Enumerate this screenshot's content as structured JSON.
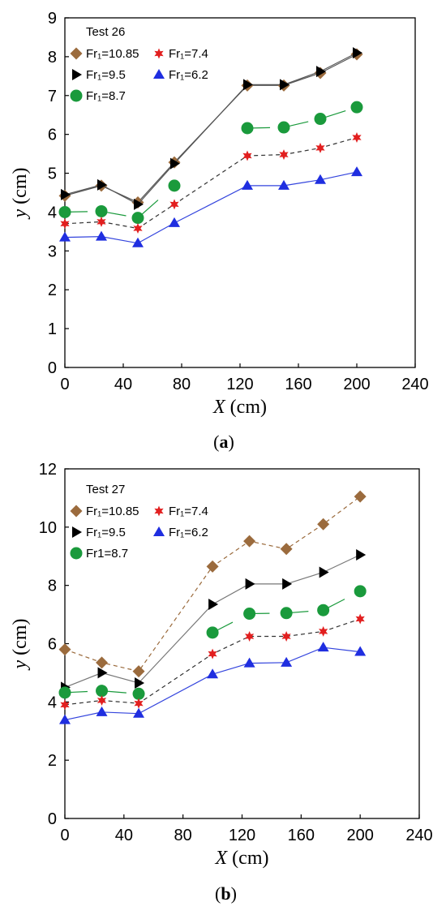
{
  "chart_data": [
    {
      "type": "line",
      "panel_label": "a",
      "xlabel": "X (cm)",
      "ylabel": "y (cm)",
      "xlim": [
        0,
        240
      ],
      "ylim": [
        0,
        9
      ],
      "xticks": [
        0,
        40,
        80,
        120,
        160,
        200,
        240
      ],
      "yticks": [
        0,
        1,
        2,
        3,
        4,
        5,
        6,
        7,
        8,
        9
      ],
      "grid": false,
      "legend_position": "top-left",
      "legend_title": "Test 26",
      "series": [
        {
          "name": "Fr1=10.85",
          "marker": "diamond",
          "color": "#9b6b3d",
          "line_color": "#555555",
          "dash": "",
          "segments": [
            [
              0,
              1,
              2,
              3,
              4,
              5,
              6,
              7
            ]
          ],
          "x": [
            0,
            25,
            50,
            75,
            125,
            150,
            175,
            200
          ],
          "values": [
            4.42,
            4.68,
            4.25,
            5.28,
            7.26,
            7.26,
            7.58,
            8.06
          ]
        },
        {
          "name": "Fr1=9.5",
          "marker": "triangle-right",
          "color": "#000000",
          "line_color": "#555555",
          "dash": "",
          "segments": [
            [
              0,
              1,
              2,
              3,
              4,
              5,
              6,
              7
            ]
          ],
          "x": [
            0,
            25,
            50,
            75,
            125,
            150,
            175,
            200
          ],
          "values": [
            4.45,
            4.7,
            4.2,
            5.25,
            7.28,
            7.28,
            7.62,
            8.1
          ]
        },
        {
          "name": "Fr1=8.7",
          "marker": "circle",
          "color": "#1a9a3c",
          "line_color": "#1a9a3c",
          "dash": "28 20",
          "segments": [
            [
              0,
              1,
              2,
              3
            ],
            [
              4,
              5,
              6,
              7
            ]
          ],
          "x": [
            0,
            25,
            50,
            75,
            125,
            150,
            175,
            200
          ],
          "values": [
            4.0,
            4.02,
            3.85,
            4.68,
            6.16,
            6.18,
            6.4,
            6.7
          ]
        },
        {
          "name": "Fr1=7.4",
          "marker": "star",
          "color": "#e21f1f",
          "line_color": "#333333",
          "dash": "5 4",
          "segments": [
            [
              0,
              1,
              2,
              3,
              4,
              5,
              6,
              7
            ]
          ],
          "x": [
            0,
            25,
            50,
            75,
            125,
            150,
            175,
            200
          ],
          "values": [
            3.7,
            3.75,
            3.58,
            4.2,
            5.45,
            5.48,
            5.65,
            5.92
          ]
        },
        {
          "name": "Fr1=6.2",
          "marker": "triangle-up",
          "color": "#1f2ee0",
          "line_color": "#3344dd",
          "dash": "",
          "segments": [
            [
              0,
              1,
              2,
              3,
              4,
              5,
              6,
              7
            ]
          ],
          "x": [
            0,
            25,
            50,
            75,
            125,
            150,
            175,
            200
          ],
          "values": [
            3.35,
            3.37,
            3.2,
            3.72,
            4.68,
            4.68,
            4.83,
            5.03
          ]
        }
      ]
    },
    {
      "type": "line",
      "panel_label": "b",
      "xlabel": "X (cm)",
      "ylabel": "y (cm)",
      "xlim": [
        0,
        240
      ],
      "ylim": [
        0,
        12
      ],
      "xticks": [
        0,
        40,
        80,
        120,
        160,
        200,
        240
      ],
      "yticks": [
        0,
        2,
        4,
        6,
        8,
        10,
        12
      ],
      "grid": false,
      "legend_position": "top-left",
      "legend_title": "Test 27",
      "series": [
        {
          "name": "Fr1=10.85",
          "marker": "diamond",
          "color": "#9b6b3d",
          "line_color": "#9b6b3d",
          "dash": "5 4",
          "segments": [
            [
              0,
              1,
              2,
              3,
              4,
              5,
              6,
              7
            ]
          ],
          "x": [
            0,
            25,
            50,
            100,
            125,
            150,
            175,
            200
          ],
          "values": [
            5.8,
            5.35,
            5.05,
            8.65,
            9.52,
            9.25,
            10.1,
            11.05
          ]
        },
        {
          "name": "Fr1=9.5",
          "marker": "triangle-right",
          "color": "#000000",
          "line_color": "#777777",
          "dash": "",
          "segments": [
            [
              0,
              1,
              2,
              3,
              4,
              5,
              6,
              7
            ]
          ],
          "x": [
            0,
            25,
            50,
            100,
            125,
            150,
            175,
            200
          ],
          "values": [
            4.5,
            5.0,
            4.65,
            7.35,
            8.05,
            8.05,
            8.45,
            9.05
          ]
        },
        {
          "name": "Fr1=8.7",
          "marker": "circle",
          "color": "#1a9a3c",
          "line_color": "#1a9a3c",
          "dash": "28 20",
          "segments": [
            [
              0,
              1,
              2
            ],
            [
              3,
              4,
              5,
              6,
              7
            ]
          ],
          "x": [
            0,
            25,
            50,
            100,
            125,
            150,
            175,
            200
          ],
          "values": [
            4.32,
            4.38,
            4.28,
            6.38,
            7.03,
            7.05,
            7.15,
            7.8
          ]
        },
        {
          "name": "Fr1=7.4",
          "marker": "star",
          "color": "#e21f1f",
          "line_color": "#333333",
          "dash": "5 4",
          "segments": [
            [
              0,
              1,
              2,
              3,
              4,
              5,
              6,
              7
            ]
          ],
          "x": [
            0,
            25,
            50,
            100,
            125,
            150,
            175,
            200
          ],
          "values": [
            3.9,
            4.05,
            3.95,
            5.65,
            6.25,
            6.25,
            6.42,
            6.85
          ]
        },
        {
          "name": "Fr1=6.2",
          "marker": "triangle-up",
          "color": "#1f2ee0",
          "line_color": "#3344dd",
          "dash": "",
          "segments": [
            [
              0,
              1,
              2,
              3,
              4,
              5,
              6,
              7
            ]
          ],
          "x": [
            0,
            25,
            50,
            100,
            125,
            150,
            175,
            200
          ],
          "values": [
            3.38,
            3.65,
            3.6,
            4.95,
            5.33,
            5.35,
            5.87,
            5.72
          ]
        }
      ],
      "legend_labels": [
        "Fr₁=10.85",
        "Fr₁=9.5",
        "Fr1=8.7",
        "Fr₁=7.4",
        "Fr₁=6.2"
      ]
    }
  ],
  "legend_labels_a": [
    "Fr₁=10.85",
    "Fr₁=9.5",
    "Fr₁=8.7",
    "Fr₁=7.4",
    "Fr₁=6.2"
  ]
}
